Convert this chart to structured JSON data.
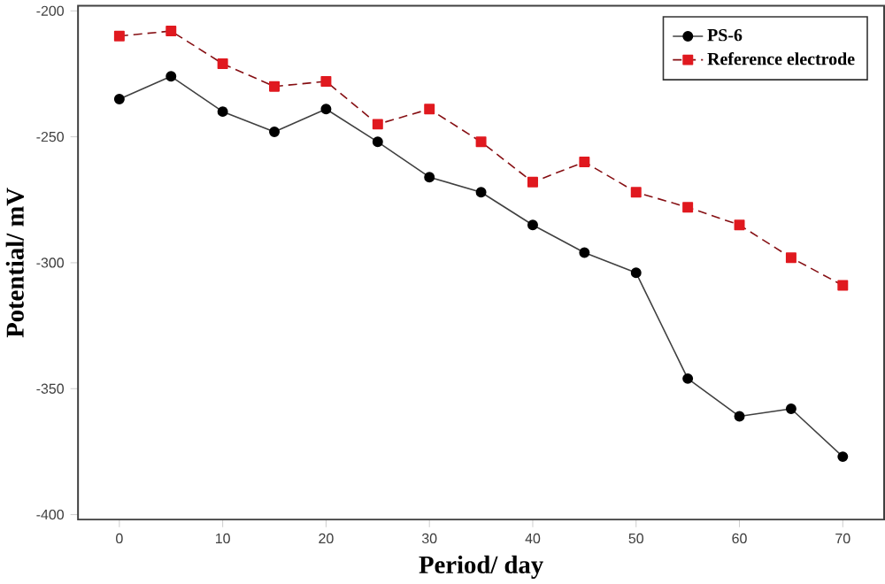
{
  "chart_data": {
    "type": "line",
    "xlabel": "Period/ day",
    "ylabel": "Potential/ mV",
    "x": [
      0,
      5,
      10,
      15,
      20,
      25,
      30,
      35,
      40,
      45,
      50,
      55,
      60,
      65,
      70
    ],
    "series": [
      {
        "name": "PS-6",
        "color": "#000000",
        "marker": "circle",
        "line_style": "solid",
        "values": [
          -235,
          -226,
          -240,
          -248,
          -239,
          -252,
          -266,
          -272,
          -285,
          -296,
          -304,
          -346,
          -361,
          -358,
          -377
        ]
      },
      {
        "name": "Reference electrode",
        "color": "#e0191f",
        "marker": "square",
        "line_style": "dashed",
        "values": [
          -210,
          -208,
          -221,
          -230,
          -228,
          -245,
          -239,
          -252,
          -268,
          -260,
          -272,
          -278,
          -285,
          -298,
          -309
        ]
      }
    ],
    "xlim": [
      -4,
      74
    ],
    "ylim": [
      -402,
      -198
    ],
    "xticks": [
      0,
      10,
      20,
      30,
      40,
      50,
      60,
      70
    ],
    "yticks": [
      -400,
      -350,
      -300,
      -250,
      -200
    ],
    "grid": false,
    "legend": "top right"
  }
}
